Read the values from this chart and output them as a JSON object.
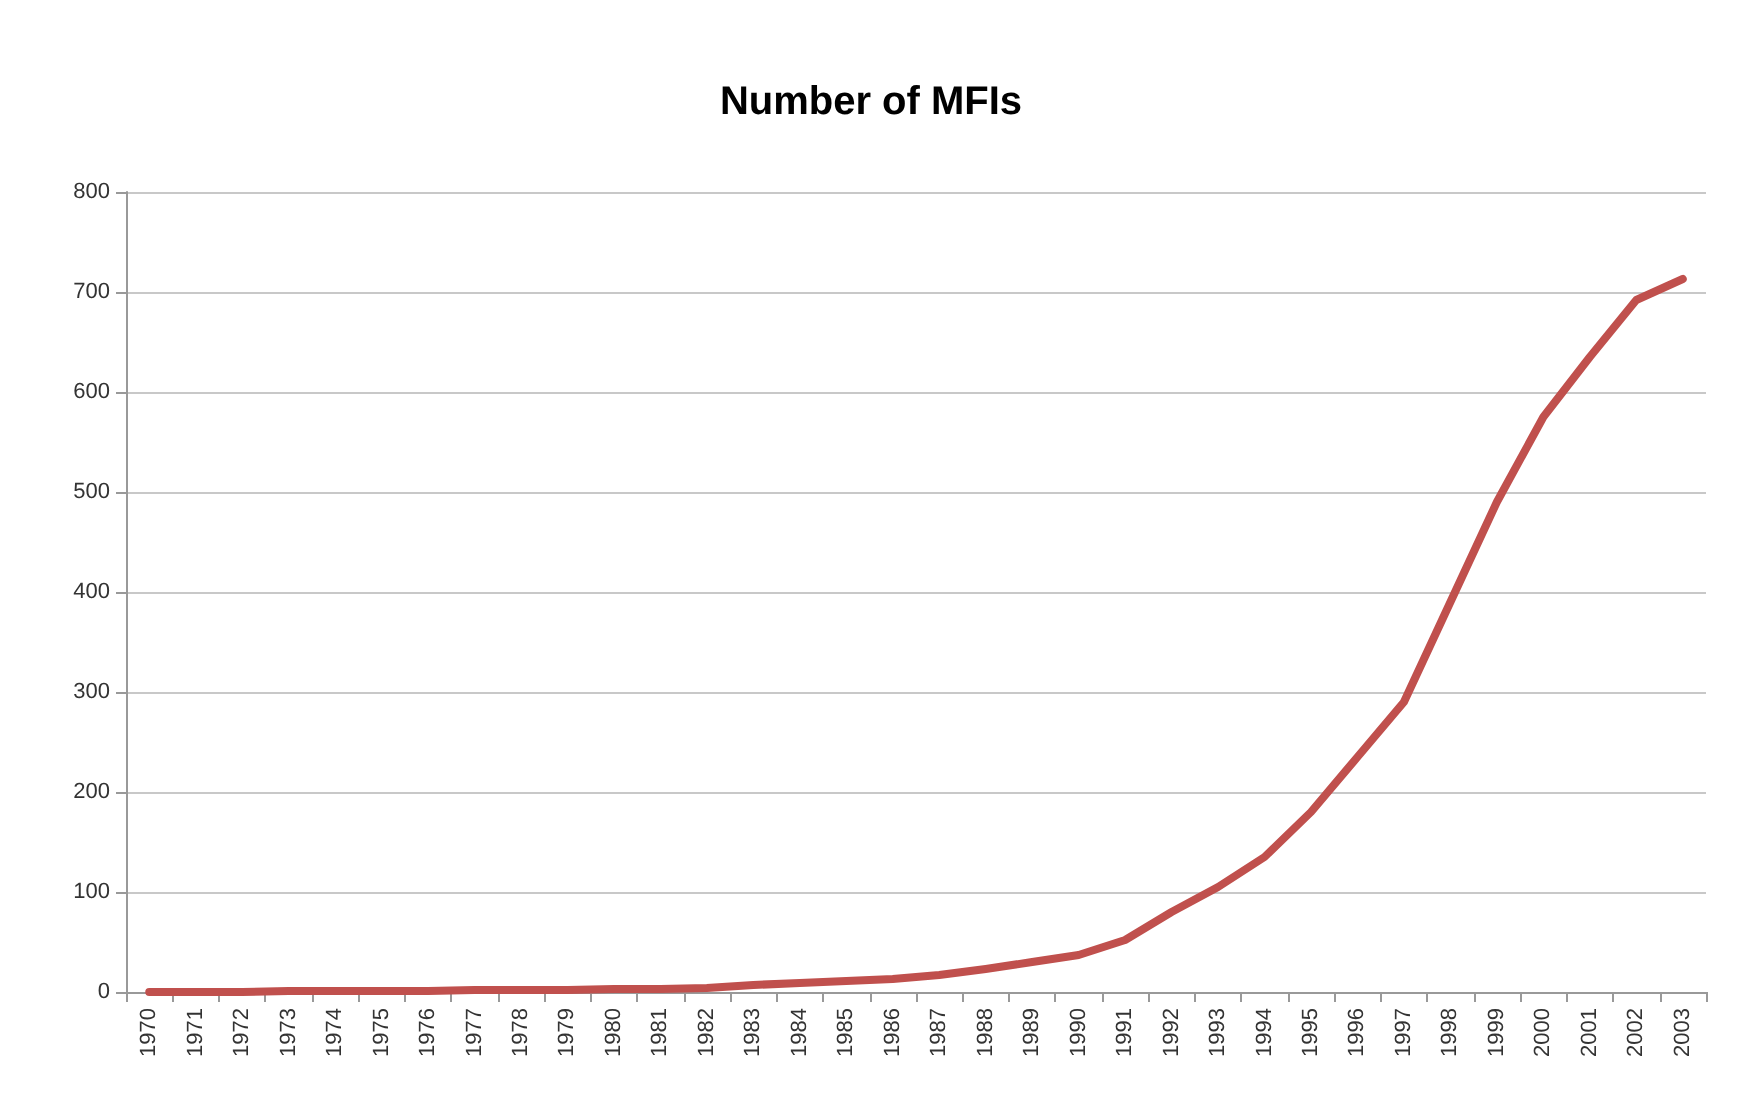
{
  "chart_data": {
    "type": "line",
    "title": "Number of MFIs",
    "categories": [
      "1970",
      "1971",
      "1972",
      "1973",
      "1974",
      "1975",
      "1976",
      "1977",
      "1978",
      "1979",
      "1980",
      "1981",
      "1982",
      "1983",
      "1984",
      "1985",
      "1986",
      "1987",
      "1988",
      "1989",
      "1990",
      "1991",
      "1992",
      "1993",
      "1994",
      "1995",
      "1996",
      "1997",
      "1998",
      "1999",
      "2000",
      "2001",
      "2002",
      "2003"
    ],
    "series": [
      {
        "color": "#c0504d",
        "values": [
          0,
          0,
          0,
          1,
          1,
          1,
          1,
          2,
          2,
          2,
          3,
          3,
          4,
          7,
          9,
          11,
          13,
          17,
          23,
          30,
          37,
          52,
          80,
          105,
          135,
          180,
          235,
          290,
          390,
          490,
          575,
          635,
          692,
          713
        ]
      }
    ],
    "ylim": [
      0,
      800
    ],
    "yticks": [
      0,
      100,
      200,
      300,
      400,
      500,
      600,
      700,
      800
    ],
    "grid": "y",
    "marker": "none",
    "line_style": "solid"
  }
}
